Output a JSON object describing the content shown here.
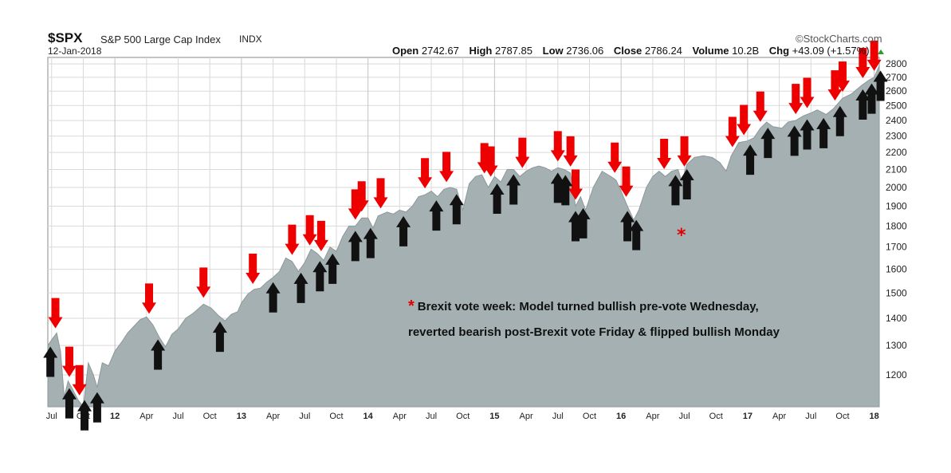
{
  "header": {
    "symbol": "$SPX",
    "description": "S&P 500 Large Cap Index",
    "exchange": "INDX",
    "date": "12-Jan-2018",
    "brand": "©StockCharts.com",
    "open_label": "Open",
    "open": "2742.67",
    "high_label": "High",
    "high": "2787.85",
    "low_label": "Low",
    "low": "2736.06",
    "close_label": "Close",
    "close": "2786.24",
    "volume_label": "Volume",
    "volume": "10.2B",
    "chg_label": "Chg",
    "chg": "+43.09 (+1.57%)"
  },
  "annotation": {
    "star": "*",
    "line1": "Brexit vote week: Model turned bullish pre-vote Wednesday,",
    "line2": "reverted bearish post-Brexit vote Friday & flipped bullish Monday"
  },
  "colors": {
    "area": "#a4b0b2",
    "area_edge": "#8c999b",
    "sell_arrow": "#ee0000",
    "buy_arrow": "#111111",
    "grid": "#d9d9d9"
  },
  "chart_data": {
    "type": "area",
    "scale": "log",
    "ylim": [
      1100,
      2850
    ],
    "xlim": [
      2011.47,
      2018.04
    ],
    "y_ticks": [
      1200,
      1300,
      1400,
      1500,
      1600,
      1700,
      1800,
      1900,
      2000,
      2100,
      2200,
      2300,
      2400,
      2500,
      2600,
      2700,
      2800
    ],
    "x_ticks": [
      {
        "label": "Jul",
        "t": 2011.5,
        "bold": false
      },
      {
        "label": "Oct",
        "t": 2011.75,
        "bold": false
      },
      {
        "label": "12",
        "t": 2012.0,
        "bold": true
      },
      {
        "label": "Apr",
        "t": 2012.25,
        "bold": false
      },
      {
        "label": "Jul",
        "t": 2012.5,
        "bold": false
      },
      {
        "label": "Oct",
        "t": 2012.75,
        "bold": false
      },
      {
        "label": "13",
        "t": 2013.0,
        "bold": true
      },
      {
        "label": "Apr",
        "t": 2013.25,
        "bold": false
      },
      {
        "label": "Jul",
        "t": 2013.5,
        "bold": false
      },
      {
        "label": "Oct",
        "t": 2013.75,
        "bold": false
      },
      {
        "label": "14",
        "t": 2014.0,
        "bold": true
      },
      {
        "label": "Apr",
        "t": 2014.25,
        "bold": false
      },
      {
        "label": "Jul",
        "t": 2014.5,
        "bold": false
      },
      {
        "label": "Oct",
        "t": 2014.75,
        "bold": false
      },
      {
        "label": "15",
        "t": 2015.0,
        "bold": true
      },
      {
        "label": "Apr",
        "t": 2015.25,
        "bold": false
      },
      {
        "label": "Jul",
        "t": 2015.5,
        "bold": false
      },
      {
        "label": "Oct",
        "t": 2015.75,
        "bold": false
      },
      {
        "label": "16",
        "t": 2016.0,
        "bold": true
      },
      {
        "label": "Apr",
        "t": 2016.25,
        "bold": false
      },
      {
        "label": "Jul",
        "t": 2016.5,
        "bold": false
      },
      {
        "label": "Oct",
        "t": 2016.75,
        "bold": false
      },
      {
        "label": "17",
        "t": 2017.0,
        "bold": true
      },
      {
        "label": "Apr",
        "t": 2017.25,
        "bold": false
      },
      {
        "label": "Jul",
        "t": 2017.5,
        "bold": false
      },
      {
        "label": "Oct",
        "t": 2017.75,
        "bold": false
      },
      {
        "label": "18",
        "t": 2018.0,
        "bold": true
      }
    ],
    "series": [
      {
        "points": [
          [
            2011.47,
            1300
          ],
          [
            2011.5,
            1320
          ],
          [
            2011.54,
            1345
          ],
          [
            2011.57,
            1280
          ],
          [
            2011.6,
            1130
          ],
          [
            2011.63,
            1180
          ],
          [
            2011.67,
            1150
          ],
          [
            2011.71,
            1120
          ],
          [
            2011.75,
            1100
          ],
          [
            2011.79,
            1240
          ],
          [
            2011.83,
            1200
          ],
          [
            2011.86,
            1160
          ],
          [
            2011.9,
            1240
          ],
          [
            2011.95,
            1230
          ],
          [
            2012.0,
            1280
          ],
          [
            2012.05,
            1310
          ],
          [
            2012.1,
            1345
          ],
          [
            2012.15,
            1370
          ],
          [
            2012.2,
            1395
          ],
          [
            2012.25,
            1405
          ],
          [
            2012.3,
            1375
          ],
          [
            2012.35,
            1330
          ],
          [
            2012.4,
            1295
          ],
          [
            2012.45,
            1340
          ],
          [
            2012.5,
            1360
          ],
          [
            2012.56,
            1400
          ],
          [
            2012.62,
            1420
          ],
          [
            2012.7,
            1455
          ],
          [
            2012.76,
            1440
          ],
          [
            2012.82,
            1410
          ],
          [
            2012.87,
            1390
          ],
          [
            2012.92,
            1415
          ],
          [
            2012.97,
            1425
          ],
          [
            2013.0,
            1460
          ],
          [
            2013.05,
            1495
          ],
          [
            2013.1,
            1515
          ],
          [
            2013.15,
            1520
          ],
          [
            2013.2,
            1545
          ],
          [
            2013.25,
            1565
          ],
          [
            2013.3,
            1590
          ],
          [
            2013.35,
            1650
          ],
          [
            2013.4,
            1635
          ],
          [
            2013.45,
            1590
          ],
          [
            2013.5,
            1630
          ],
          [
            2013.55,
            1690
          ],
          [
            2013.6,
            1670
          ],
          [
            2013.65,
            1640
          ],
          [
            2013.7,
            1700
          ],
          [
            2013.75,
            1680
          ],
          [
            2013.8,
            1750
          ],
          [
            2013.85,
            1800
          ],
          [
            2013.9,
            1800
          ],
          [
            2013.95,
            1840
          ],
          [
            2014.0,
            1840
          ],
          [
            2014.04,
            1790
          ],
          [
            2014.08,
            1850
          ],
          [
            2014.15,
            1870
          ],
          [
            2014.2,
            1860
          ],
          [
            2014.25,
            1880
          ],
          [
            2014.3,
            1870
          ],
          [
            2014.35,
            1900
          ],
          [
            2014.4,
            1950
          ],
          [
            2014.45,
            1960
          ],
          [
            2014.5,
            1980
          ],
          [
            2014.55,
            1950
          ],
          [
            2014.6,
            1990
          ],
          [
            2014.65,
            2000
          ],
          [
            2014.7,
            1990
          ],
          [
            2014.75,
            1880
          ],
          [
            2014.8,
            2020
          ],
          [
            2014.85,
            2060
          ],
          [
            2014.9,
            2070
          ],
          [
            2014.95,
            2000
          ],
          [
            2015.0,
            2060
          ],
          [
            2015.05,
            2030
          ],
          [
            2015.1,
            2100
          ],
          [
            2015.15,
            2100
          ],
          [
            2015.2,
            2060
          ],
          [
            2015.25,
            2090
          ],
          [
            2015.3,
            2110
          ],
          [
            2015.35,
            2120
          ],
          [
            2015.4,
            2110
          ],
          [
            2015.45,
            2090
          ],
          [
            2015.5,
            2110
          ],
          [
            2015.55,
            2100
          ],
          [
            2015.6,
            2080
          ],
          [
            2015.64,
            1900
          ],
          [
            2015.68,
            1950
          ],
          [
            2015.72,
            1880
          ],
          [
            2015.78,
            2000
          ],
          [
            2015.85,
            2090
          ],
          [
            2015.92,
            2060
          ],
          [
            2015.96,
            2040
          ],
          [
            2016.0,
            1980
          ],
          [
            2016.05,
            1900
          ],
          [
            2016.1,
            1830
          ],
          [
            2016.14,
            1880
          ],
          [
            2016.2,
            2000
          ],
          [
            2016.25,
            2060
          ],
          [
            2016.3,
            2090
          ],
          [
            2016.35,
            2060
          ],
          [
            2016.4,
            2090
          ],
          [
            2016.45,
            2100
          ],
          [
            2016.48,
            2030
          ],
          [
            2016.52,
            2130
          ],
          [
            2016.58,
            2170
          ],
          [
            2016.65,
            2180
          ],
          [
            2016.72,
            2170
          ],
          [
            2016.78,
            2140
          ],
          [
            2016.83,
            2090
          ],
          [
            2016.87,
            2180
          ],
          [
            2016.93,
            2260
          ],
          [
            2017.0,
            2270
          ],
          [
            2017.05,
            2290
          ],
          [
            2017.1,
            2350
          ],
          [
            2017.15,
            2390
          ],
          [
            2017.2,
            2360
          ],
          [
            2017.27,
            2350
          ],
          [
            2017.32,
            2390
          ],
          [
            2017.38,
            2400
          ],
          [
            2017.44,
            2430
          ],
          [
            2017.5,
            2450
          ],
          [
            2017.55,
            2470
          ],
          [
            2017.62,
            2440
          ],
          [
            2017.68,
            2480
          ],
          [
            2017.75,
            2550
          ],
          [
            2017.82,
            2580
          ],
          [
            2017.9,
            2640
          ],
          [
            2017.96,
            2680
          ],
          [
            2018.0,
            2700
          ],
          [
            2018.04,
            2786
          ]
        ]
      }
    ],
    "sell_signals": [
      2011.53,
      2011.64,
      2011.72,
      2012.27,
      2012.7,
      2013.09,
      2013.4,
      2013.54,
      2013.63,
      2013.9,
      2013.95,
      2014.1,
      2014.45,
      2014.62,
      2014.92,
      2014.97,
      2015.22,
      2015.5,
      2015.6,
      2015.64,
      2015.95,
      2016.04,
      2016.34,
      2016.5,
      2016.88,
      2016.97,
      2017.1,
      2017.38,
      2017.47,
      2017.69,
      2017.75,
      2017.91,
      2018.0
    ],
    "buy_signals": [
      2011.49,
      2011.64,
      2011.76,
      2011.86,
      2012.34,
      2012.83,
      2013.25,
      2013.47,
      2013.62,
      2013.72,
      2013.9,
      2014.02,
      2014.28,
      2014.54,
      2014.7,
      2015.02,
      2015.15,
      2015.5,
      2015.56,
      2015.64,
      2015.7,
      2016.05,
      2016.12,
      2016.43,
      2016.52,
      2017.02,
      2017.16,
      2017.37,
      2017.47,
      2017.6,
      2017.73,
      2017.91,
      2017.98,
      2018.05
    ]
  }
}
